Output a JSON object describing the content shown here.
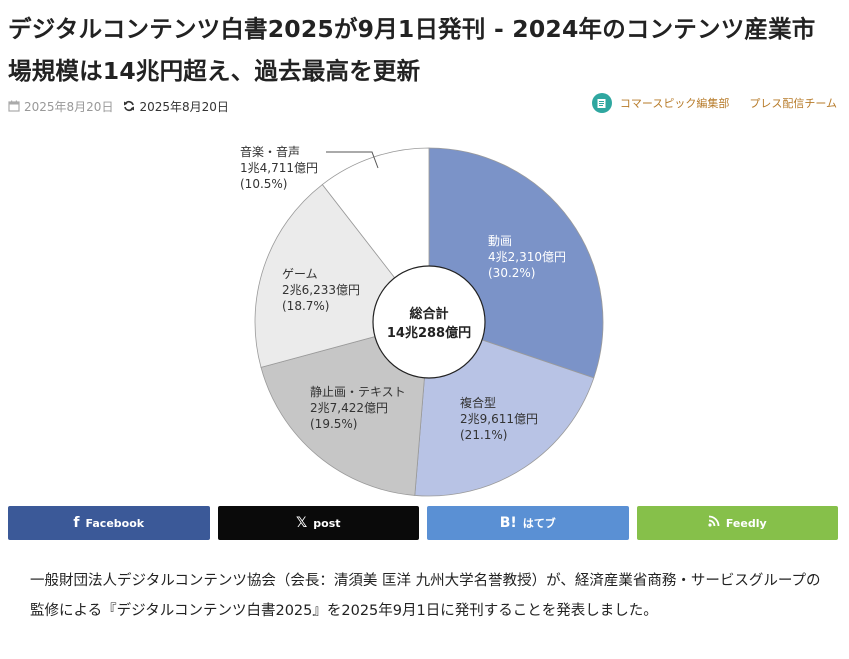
{
  "article": {
    "title": "デジタルコンテンツ白書2025が9月1日発刊 - 2024年のコンテンツ産業市場規模は14兆円超え、過去最高を更新",
    "published_date": "2025年8月20日",
    "updated_date": "2025年8月20日",
    "author": "コマースピック編集部",
    "team": "プレス配信チーム",
    "body": "一般財団法人デジタルコンテンツ協会（会長：清須美 匡洋 九州大学名誉教授）が、経済産業省商務・サービスグループの監修による『デジタルコンテンツ白書2025』を2025年9月1日に発刊することを発表しました。"
  },
  "share": {
    "facebook": "Facebook",
    "x": "post",
    "hatena": "はてブ",
    "feedly": "Feedly"
  },
  "icons": {
    "published": "calendar-icon",
    "updated": "refresh-icon",
    "author": "document-icon"
  },
  "chart_data": {
    "type": "pie",
    "center_label": "総合計",
    "center_value": "14兆288億円",
    "slices": [
      {
        "name": "動画",
        "amount": "4兆2,310億円",
        "percent_label": "(30.2%)",
        "value": 30.2,
        "color": "#7b93c8"
      },
      {
        "name": "複合型",
        "amount": "2兆9,611億円",
        "percent_label": "(21.1%)",
        "value": 21.1,
        "color": "#b8c3e5"
      },
      {
        "name": "静止画・テキスト",
        "amount": "2兆7,422億円",
        "percent_label": "(19.5%)",
        "value": 19.5,
        "color": "#c6c6c6"
      },
      {
        "name": "ゲーム",
        "amount": "2兆6,233億円",
        "percent_label": "(18.7%)",
        "value": 18.7,
        "color": "#ebebeb"
      },
      {
        "name": "音楽・音声",
        "amount": "1兆4,711億円",
        "percent_label": "(10.5%)",
        "value": 10.5,
        "color": "#ffffff"
      }
    ]
  }
}
